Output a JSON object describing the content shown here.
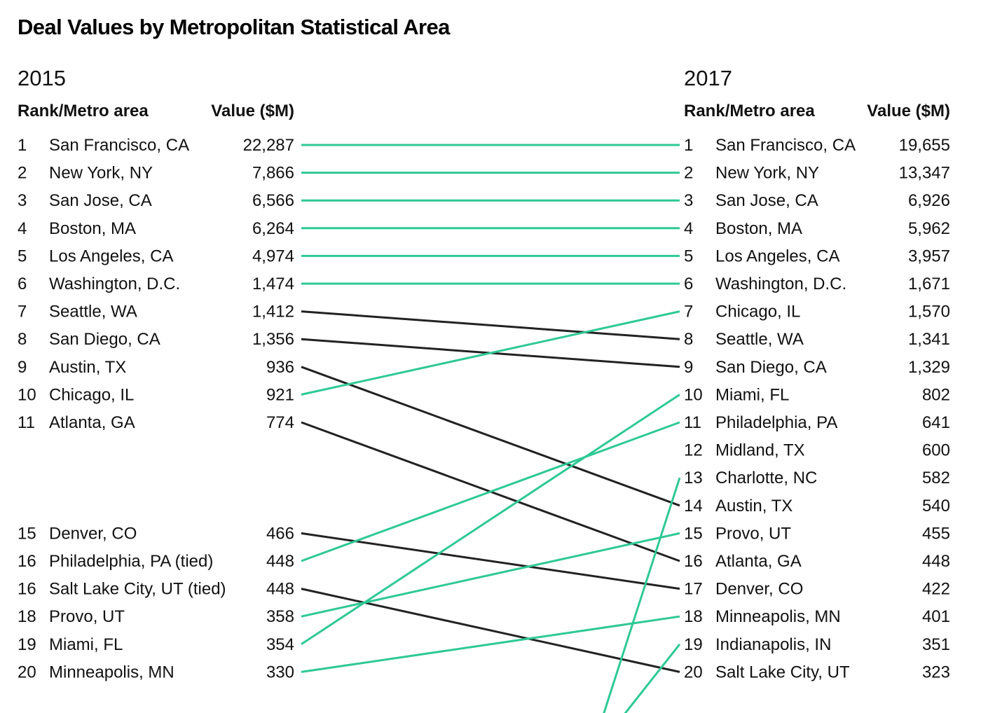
{
  "chart_data": {
    "type": "slope",
    "title": "Deal Values by Metropolitan Statistical Area",
    "left": {
      "year": "2015",
      "rank_header": "Rank/Metro area",
      "value_header": "Value ($M)",
      "rows": [
        {
          "rank": 1,
          "label": "San Francisco, CA",
          "value": "22,287"
        },
        {
          "rank": 2,
          "label": "New York, NY",
          "value": "7,866"
        },
        {
          "rank": 3,
          "label": "San Jose, CA",
          "value": "6,566"
        },
        {
          "rank": 4,
          "label": "Boston, MA",
          "value": "6,264"
        },
        {
          "rank": 5,
          "label": "Los Angeles, CA",
          "value": "4,974"
        },
        {
          "rank": 6,
          "label": "Washington, D.C.",
          "value": "1,474"
        },
        {
          "rank": 7,
          "label": "Seattle, WA",
          "value": "1,412"
        },
        {
          "rank": 8,
          "label": "San Diego, CA",
          "value": "1,356"
        },
        {
          "rank": 9,
          "label": "Austin, TX",
          "value": "936"
        },
        {
          "rank": 10,
          "label": "Chicago, IL",
          "value": "921"
        },
        {
          "rank": 11,
          "label": "Atlanta, GA",
          "value": "774"
        },
        {
          "rank": 15,
          "label": "Denver, CO",
          "value": "466"
        },
        {
          "rank": 16,
          "label": "Philadelphia, PA (tied)",
          "value": "448"
        },
        {
          "rank": 16,
          "label": "Salt Lake City, UT (tied)",
          "value": "448"
        },
        {
          "rank": 18,
          "label": "Provo, UT",
          "value": "358"
        },
        {
          "rank": 19,
          "label": "Miami, FL",
          "value": "354"
        },
        {
          "rank": 20,
          "label": "Minneapolis, MN",
          "value": "330"
        }
      ]
    },
    "right": {
      "year": "2017",
      "rank_header": "Rank/Metro area",
      "value_header": "Value ($M)",
      "rows": [
        {
          "rank": 1,
          "label": "San Francisco, CA",
          "value": "19,655"
        },
        {
          "rank": 2,
          "label": "New York, NY",
          "value": "13,347"
        },
        {
          "rank": 3,
          "label": "San Jose, CA",
          "value": "6,926"
        },
        {
          "rank": 4,
          "label": "Boston, MA",
          "value": "5,962"
        },
        {
          "rank": 5,
          "label": "Los Angeles, CA",
          "value": "3,957"
        },
        {
          "rank": 6,
          "label": "Washington, D.C.",
          "value": "1,671"
        },
        {
          "rank": 7,
          "label": "Chicago, IL",
          "value": "1,570"
        },
        {
          "rank": 8,
          "label": "Seattle, WA",
          "value": "1,341"
        },
        {
          "rank": 9,
          "label": "San Diego, CA",
          "value": "1,329"
        },
        {
          "rank": 10,
          "label": "Miami, FL",
          "value": "802"
        },
        {
          "rank": 11,
          "label": "Philadelphia, PA",
          "value": "641"
        },
        {
          "rank": 12,
          "label": "Midland, TX",
          "value": "600"
        },
        {
          "rank": 13,
          "label": "Charlotte, NC",
          "value": "582"
        },
        {
          "rank": 14,
          "label": "Austin, TX",
          "value": "540"
        },
        {
          "rank": 15,
          "label": "Provo, UT",
          "value": "455"
        },
        {
          "rank": 16,
          "label": "Atlanta, GA",
          "value": "448"
        },
        {
          "rank": 17,
          "label": "Denver, CO",
          "value": "422"
        },
        {
          "rank": 18,
          "label": "Minneapolis, MN",
          "value": "401"
        },
        {
          "rank": 19,
          "label": "Indianapolis, IN",
          "value": "351"
        },
        {
          "rank": 20,
          "label": "Salt Lake City, UT",
          "value": "323"
        }
      ]
    },
    "connections": [
      {
        "from": 1,
        "to": 1,
        "change": "same"
      },
      {
        "from": 2,
        "to": 2,
        "change": "same"
      },
      {
        "from": 3,
        "to": 3,
        "change": "same"
      },
      {
        "from": 4,
        "to": 4,
        "change": "same"
      },
      {
        "from": 5,
        "to": 5,
        "change": "same"
      },
      {
        "from": 6,
        "to": 6,
        "change": "same"
      },
      {
        "from": 7,
        "to": 8,
        "change": "down"
      },
      {
        "from": 8,
        "to": 9,
        "change": "down"
      },
      {
        "from": 9,
        "to": 14,
        "change": "down"
      },
      {
        "from": 10,
        "to": 7,
        "change": "up"
      },
      {
        "from": 11,
        "to": 16,
        "change": "down"
      },
      {
        "from": 15,
        "to": 17,
        "change": "down"
      },
      {
        "from": 16,
        "to": 11,
        "change": "up"
      },
      {
        "from": 16.5,
        "to": 20,
        "change": "down"
      },
      {
        "from": 18,
        "to": 15,
        "change": "up"
      },
      {
        "from": 19,
        "to": 10,
        "change": "up"
      },
      {
        "from": 20,
        "to": 18,
        "change": "up"
      },
      {
        "from": "offscreen",
        "to": 13,
        "change": "up"
      },
      {
        "from": "offscreen",
        "to": 19,
        "change": "up"
      }
    ],
    "colors": {
      "same": "#2ec994",
      "up": "#2ec994",
      "down": "#222222"
    }
  }
}
